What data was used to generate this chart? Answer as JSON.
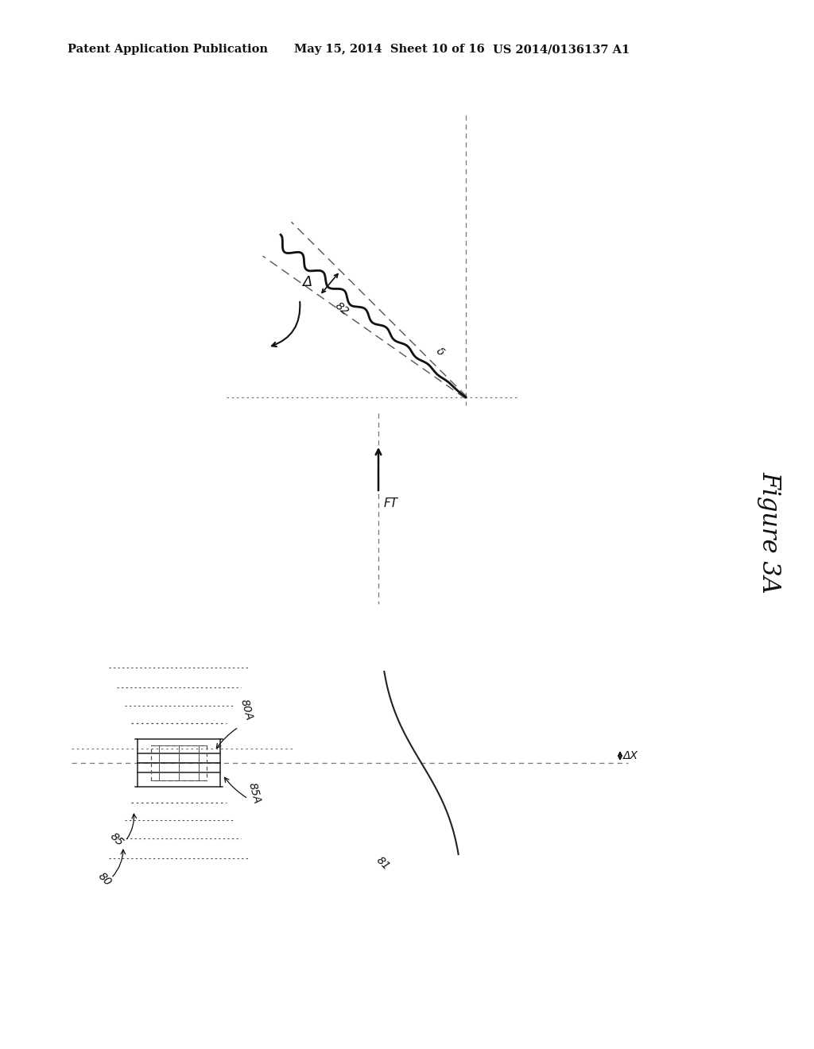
{
  "bg_color": "#ffffff",
  "header_left": "Patent Application Publication",
  "header_mid": "May 15, 2014  Sheet 10 of 16",
  "header_right": "US 2014/0136137 A1",
  "figure_label": "Figure 3A",
  "label_Delta": "Δ",
  "label_delta": "δ",
  "label_82": "82",
  "mid_label": "FT",
  "label_80": "80",
  "label_80A": "80A",
  "label_85": "85",
  "label_85A": "85A",
  "label_81": "81",
  "label_deltaX": "ΔX"
}
